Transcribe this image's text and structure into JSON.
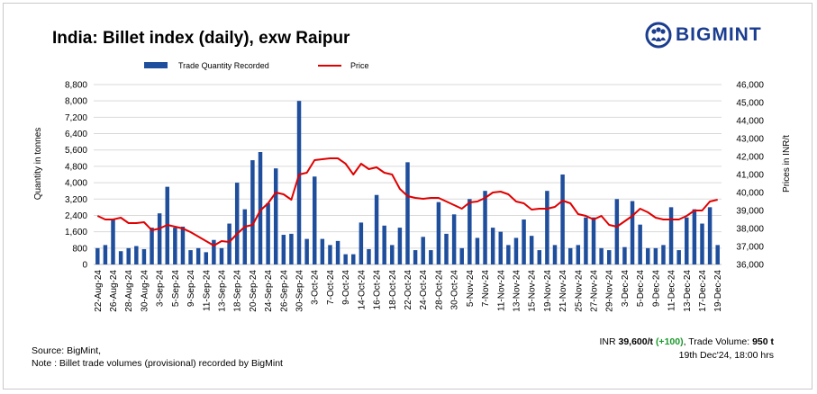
{
  "title": "India: Billet index (daily), exw Raipur",
  "logo": {
    "text": "BIGMINT",
    "icon": "people-globe-icon"
  },
  "colors": {
    "bars": "#1f4e9c",
    "line": "#e00000",
    "brand": "#1b3d8f",
    "positive": "#1a9a2c"
  },
  "legend": {
    "bar_label": "Trade Quantity Recorded",
    "line_label": "Price"
  },
  "footer": {
    "source": "Source: BigMint,",
    "note": "Note : Billet trade volumes (provisional) recorded by BigMint",
    "price_prefix": "INR ",
    "price_value": "39,600/t",
    "price_change": "(+100)",
    "volume_label": ", Trade Volume: ",
    "volume_value": "950 t",
    "timestamp": "19th Dec'24, 18:00 hrs"
  },
  "chart_data": {
    "type": "bar+line",
    "title": "India: Billet index (daily), exw Raipur",
    "ylabel_left": "Quantity in tonnes",
    "ylabel_right": "Prices in INR/t",
    "ylim_left": [
      0,
      8800
    ],
    "yticks_left": [
      "0",
      "800",
      "1,600",
      "2,400",
      "3,200",
      "4,000",
      "4,800",
      "5,600",
      "6,400",
      "7,200",
      "8,000",
      "8,800"
    ],
    "ylim_right": [
      36000,
      46000
    ],
    "yticks_right": [
      "36,000",
      "37,000",
      "38,000",
      "39,000",
      "40,000",
      "41,000",
      "42,000",
      "43,000",
      "44,000",
      "45,000",
      "46,000"
    ],
    "xtick_labels": [
      "22-Aug-24",
      "26-Aug-24",
      "28-Aug-24",
      "30-Aug-24",
      "3-Sep-24",
      "5-Sep-24",
      "9-Sep-24",
      "11-Sep-24",
      "13-Sep-24",
      "18-Sep-24",
      "20-Sep-24",
      "24-Sep-24",
      "26-Sep-24",
      "30-Sep-24",
      "3-Oct-24",
      "7-Oct-24",
      "9-Oct-24",
      "14-Oct-24",
      "16-Oct-24",
      "18-Oct-24",
      "22-Oct-24",
      "24-Oct-24",
      "28-Oct-24",
      "30-Oct-24",
      "5-Nov-24",
      "7-Nov-24",
      "11-Nov-24",
      "13-Nov-24",
      "15-Nov-24",
      "19-Nov-24",
      "21-Nov-24",
      "25-Nov-24",
      "27-Nov-24",
      "29-Nov-24",
      "3-Dec-24",
      "5-Dec-24",
      "9-Dec-24",
      "11-Dec-24",
      "13-Dec-24",
      "17-Dec-24",
      "19-Dec-24"
    ],
    "series": [
      {
        "name": "Trade Quantity Recorded",
        "type": "bar",
        "axis": "left",
        "values": [
          800,
          950,
          2200,
          650,
          800,
          900,
          750,
          1800,
          2500,
          3800,
          1800,
          1850,
          700,
          800,
          600,
          1200,
          800,
          2000,
          4000,
          2700,
          5100,
          5500,
          3000,
          4700,
          1450,
          1500,
          8000,
          1250,
          4300,
          1250,
          950,
          1150,
          500,
          500,
          2050,
          750,
          3400,
          1900,
          950,
          1800,
          5000,
          700,
          1350,
          700,
          3050,
          1500,
          2450,
          800,
          3200,
          1300,
          3600,
          1800,
          1600,
          950,
          1300,
          2200,
          1400,
          700,
          3600,
          950,
          4400,
          800,
          950,
          2300,
          2300,
          800,
          700,
          3200,
          850,
          3100,
          1950,
          800,
          800,
          950,
          2800,
          700,
          2300,
          2700,
          2000,
          2800,
          950
        ]
      },
      {
        "name": "Price",
        "type": "line",
        "axis": "right",
        "values": [
          38700,
          38500,
          38500,
          38600,
          38300,
          38300,
          38350,
          37900,
          38000,
          38200,
          38100,
          38000,
          37800,
          37550,
          37300,
          37050,
          37300,
          37250,
          37700,
          38100,
          38200,
          39000,
          39400,
          40000,
          39900,
          39600,
          41000,
          41100,
          41800,
          41850,
          41900,
          41900,
          41600,
          41000,
          41600,
          41300,
          41400,
          41100,
          41000,
          40200,
          39800,
          39700,
          39650,
          39700,
          39700,
          39500,
          39300,
          39100,
          39450,
          39500,
          39700,
          40000,
          40050,
          39900,
          39500,
          39400,
          39050,
          39100,
          39100,
          39200,
          39550,
          39400,
          38800,
          38700,
          38500,
          38700,
          38200,
          38100,
          38400,
          38700,
          39100,
          38900,
          38600,
          38500,
          38500,
          38500,
          38700,
          39000,
          39000,
          39500,
          39600
        ]
      }
    ],
    "grid": "horizontal",
    "legend_position": "top"
  }
}
